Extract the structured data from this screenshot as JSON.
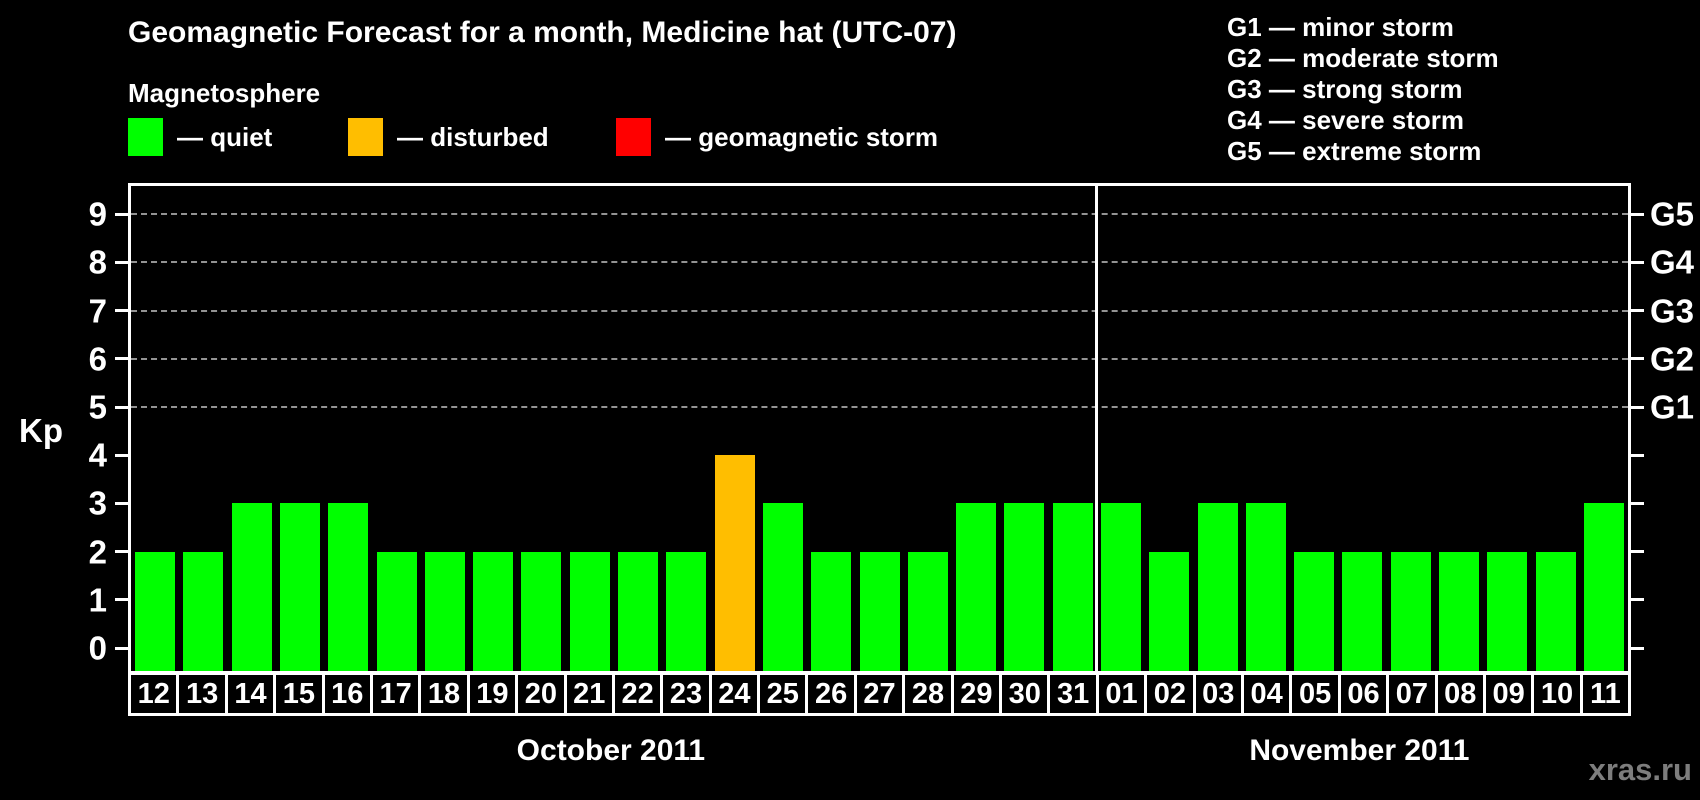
{
  "title": "Geomagnetic Forecast for a month, Medicine hat (UTC-07)",
  "magnetosphere_legend": {
    "heading": "Magnetosphere",
    "items": [
      {
        "name": "quiet",
        "label": "— quiet",
        "color": "#00ff00"
      },
      {
        "name": "disturbed",
        "label": "— disturbed",
        "color": "#ffbe00"
      },
      {
        "name": "storm",
        "label": "— geomagnetic storm",
        "color": "#ff0000"
      }
    ]
  },
  "g_scale_legend": {
    "items": [
      "G1 — minor storm",
      "G2 — moderate storm",
      "G3 — strong storm",
      "G4 — severe storm",
      "G5 — extreme storm"
    ]
  },
  "watermark": "xras.ru",
  "chart_data": {
    "type": "bar",
    "ylabel": "Kp",
    "ylim": [
      0,
      9
    ],
    "y_ticks": [
      0,
      1,
      2,
      3,
      4,
      5,
      6,
      7,
      8,
      9
    ],
    "gridline_levels": [
      5,
      6,
      7,
      8,
      9
    ],
    "right_axis": [
      {
        "kp": 5,
        "label": "G1"
      },
      {
        "kp": 6,
        "label": "G2"
      },
      {
        "kp": 7,
        "label": "G3"
      },
      {
        "kp": 8,
        "label": "G4"
      },
      {
        "kp": 9,
        "label": "G5"
      }
    ],
    "state_colors": {
      "quiet": "#00ff00",
      "disturbed": "#ffbe00",
      "storm": "#ff0000"
    },
    "months": [
      {
        "label": "October 2011",
        "start_index": 0,
        "count": 20
      },
      {
        "label": "November 2011",
        "start_index": 20,
        "count": 11
      }
    ],
    "bars": [
      {
        "day": "12",
        "kp": 2,
        "state": "quiet"
      },
      {
        "day": "13",
        "kp": 2,
        "state": "quiet"
      },
      {
        "day": "14",
        "kp": 3,
        "state": "quiet"
      },
      {
        "day": "15",
        "kp": 3,
        "state": "quiet"
      },
      {
        "day": "16",
        "kp": 3,
        "state": "quiet"
      },
      {
        "day": "17",
        "kp": 2,
        "state": "quiet"
      },
      {
        "day": "18",
        "kp": 2,
        "state": "quiet"
      },
      {
        "day": "19",
        "kp": 2,
        "state": "quiet"
      },
      {
        "day": "20",
        "kp": 2,
        "state": "quiet"
      },
      {
        "day": "21",
        "kp": 2,
        "state": "quiet"
      },
      {
        "day": "22",
        "kp": 2,
        "state": "quiet"
      },
      {
        "day": "23",
        "kp": 2,
        "state": "quiet"
      },
      {
        "day": "24",
        "kp": 4,
        "state": "disturbed"
      },
      {
        "day": "25",
        "kp": 3,
        "state": "quiet"
      },
      {
        "day": "26",
        "kp": 2,
        "state": "quiet"
      },
      {
        "day": "27",
        "kp": 2,
        "state": "quiet"
      },
      {
        "day": "28",
        "kp": 2,
        "state": "quiet"
      },
      {
        "day": "29",
        "kp": 3,
        "state": "quiet"
      },
      {
        "day": "30",
        "kp": 3,
        "state": "quiet"
      },
      {
        "day": "31",
        "kp": 3,
        "state": "quiet"
      },
      {
        "day": "01",
        "kp": 3,
        "state": "quiet"
      },
      {
        "day": "02",
        "kp": 2,
        "state": "quiet"
      },
      {
        "day": "03",
        "kp": 3,
        "state": "quiet"
      },
      {
        "day": "04",
        "kp": 3,
        "state": "quiet"
      },
      {
        "day": "05",
        "kp": 2,
        "state": "quiet"
      },
      {
        "day": "06",
        "kp": 2,
        "state": "quiet"
      },
      {
        "day": "07",
        "kp": 2,
        "state": "quiet"
      },
      {
        "day": "08",
        "kp": 2,
        "state": "quiet"
      },
      {
        "day": "09",
        "kp": 2,
        "state": "quiet"
      },
      {
        "day": "10",
        "kp": 2,
        "state": "quiet"
      },
      {
        "day": "11",
        "kp": 3,
        "state": "quiet"
      }
    ]
  }
}
